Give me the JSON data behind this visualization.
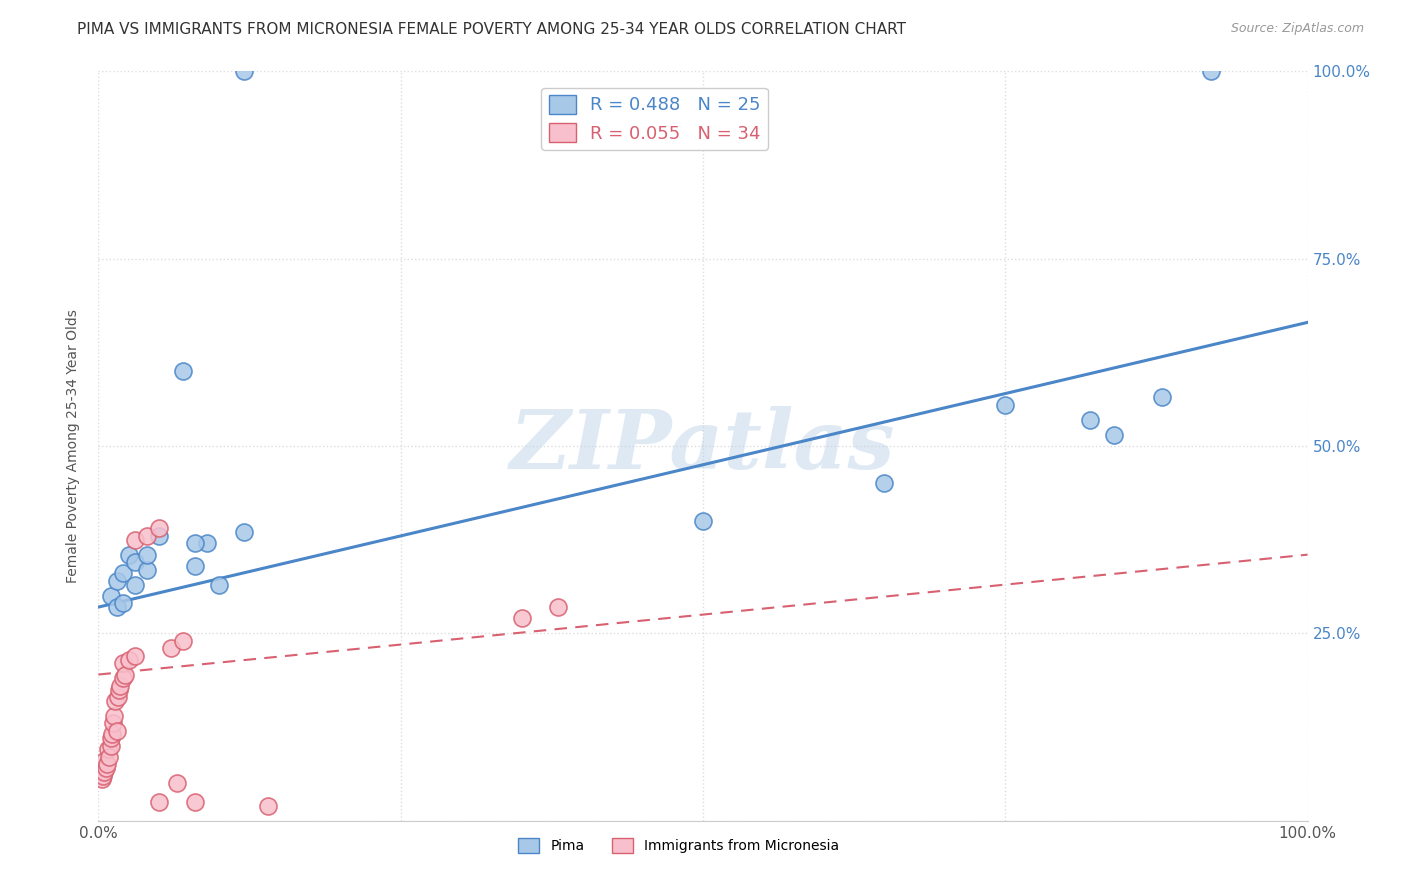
{
  "title": "PIMA VS IMMIGRANTS FROM MICRONESIA FEMALE POVERTY AMONG 25-34 YEAR OLDS CORRELATION CHART",
  "source": "Source: ZipAtlas.com",
  "ylabel": "Female Poverty Among 25-34 Year Olds",
  "xlim": [
    0,
    1.0
  ],
  "ylim": [
    0,
    1.0
  ],
  "pima_color": "#a8c8e8",
  "pima_edge_color": "#4a86c8",
  "micronesia_color": "#f8c0cc",
  "micronesia_edge_color": "#d86070",
  "pima_R": 0.488,
  "pima_N": 25,
  "micronesia_R": 0.055,
  "micronesia_N": 34,
  "pima_line_color": "#4a86c8",
  "micronesia_line_color": "#d86070",
  "watermark": "ZIPatlas",
  "pima_x": [
    0.01,
    0.015,
    0.015,
    0.02,
    0.02,
    0.025,
    0.03,
    0.03,
    0.04,
    0.05,
    0.07,
    0.08,
    0.09,
    0.12,
    0.5,
    0.65,
    0.75,
    0.82,
    0.84,
    0.88,
    0.92,
    0.1,
    0.12,
    0.08,
    0.04
  ],
  "pima_y": [
    0.3,
    0.32,
    0.285,
    0.33,
    0.29,
    0.355,
    0.315,
    0.345,
    0.335,
    0.38,
    0.6,
    0.34,
    0.37,
    1.0,
    0.4,
    0.45,
    0.555,
    0.535,
    0.515,
    0.565,
    1.0,
    0.315,
    0.385,
    0.37,
    0.355
  ],
  "micronesia_x": [
    0.003,
    0.004,
    0.005,
    0.005,
    0.006,
    0.007,
    0.008,
    0.009,
    0.01,
    0.01,
    0.011,
    0.012,
    0.013,
    0.014,
    0.015,
    0.016,
    0.017,
    0.018,
    0.02,
    0.02,
    0.022,
    0.025,
    0.03,
    0.03,
    0.04,
    0.05,
    0.05,
    0.06,
    0.065,
    0.07,
    0.08,
    0.14,
    0.35,
    0.38
  ],
  "micronesia_y": [
    0.055,
    0.06,
    0.065,
    0.08,
    0.07,
    0.075,
    0.095,
    0.085,
    0.1,
    0.11,
    0.115,
    0.13,
    0.14,
    0.16,
    0.12,
    0.165,
    0.175,
    0.18,
    0.19,
    0.21,
    0.195,
    0.215,
    0.22,
    0.375,
    0.38,
    0.39,
    0.025,
    0.23,
    0.05,
    0.24,
    0.025,
    0.02,
    0.27,
    0.285
  ],
  "pima_line_x0": 0.0,
  "pima_line_y0": 0.285,
  "pima_line_x1": 1.0,
  "pima_line_y1": 0.665,
  "micro_line_x0": 0.0,
  "micro_line_y0": 0.195,
  "micro_line_x1": 1.0,
  "micro_line_y1": 0.355,
  "background_color": "#ffffff",
  "grid_color": "#dddddd",
  "title_fontsize": 11,
  "label_fontsize": 10,
  "tick_fontsize": 11,
  "legend_fontsize": 13
}
